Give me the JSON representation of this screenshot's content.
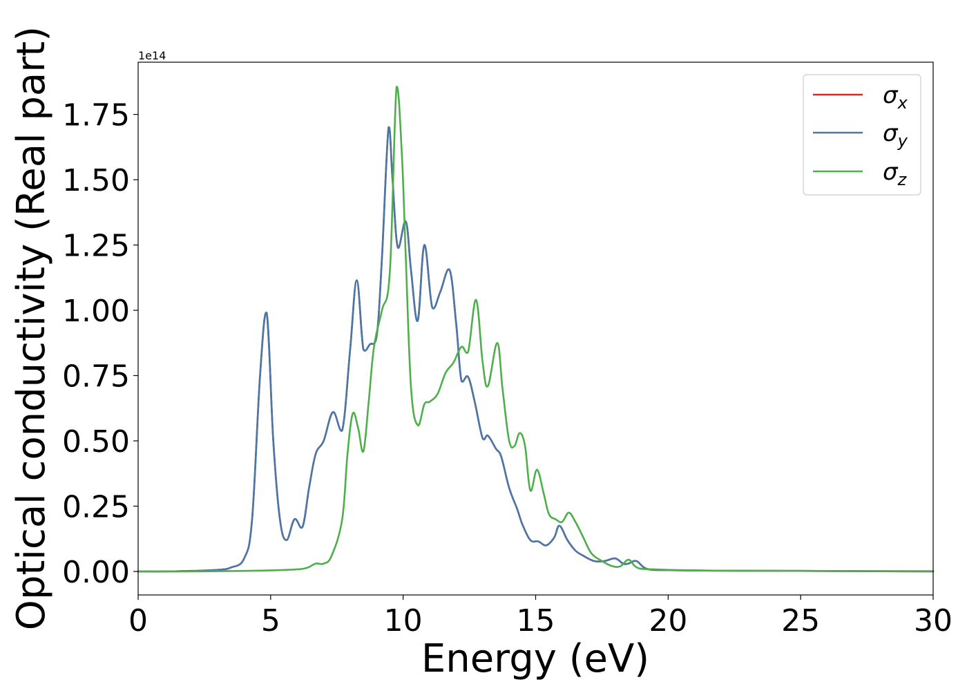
{
  "colors": {
    "sigma_x": "#d62728",
    "sigma_y": "#4878a8",
    "sigma_z": "#4daf4a"
  },
  "chart_data": {
    "type": "line",
    "title": "",
    "xlabel": "Energy (eV)",
    "ylabel": "Optical conductivity (Real part)",
    "y_offset_label": "1e14",
    "xlim": [
      0,
      30
    ],
    "ylim": [
      -0.09,
      1.95
    ],
    "x_ticks": [
      0,
      5,
      10,
      15,
      20,
      25,
      30
    ],
    "x_tick_labels": [
      "0",
      "5",
      "10",
      "15",
      "20",
      "25",
      "30"
    ],
    "y_ticks": [
      0.0,
      0.25,
      0.5,
      0.75,
      1.0,
      1.25,
      1.5,
      1.75
    ],
    "y_tick_labels": [
      "0.00",
      "0.25",
      "0.50",
      "0.75",
      "1.00",
      "1.25",
      "1.50",
      "1.75"
    ],
    "grid": false,
    "legend": {
      "position": "top-right",
      "entries": [
        "σx",
        "σy",
        "σz"
      ]
    },
    "series": [
      {
        "name": "σx",
        "legend_base": "σ",
        "legend_sub": "x",
        "color": "#d62728",
        "x": [
          0,
          1,
          2,
          3,
          3.5,
          4,
          4.3,
          4.6,
          4.85,
          5.1,
          5.35,
          5.6,
          5.9,
          6.2,
          6.45,
          6.7,
          7.0,
          7.35,
          7.7,
          8.0,
          8.25,
          8.5,
          8.75,
          9.0,
          9.2,
          9.45,
          9.6,
          9.8,
          10.1,
          10.3,
          10.55,
          10.8,
          11.1,
          11.4,
          11.75,
          12.0,
          12.2,
          12.45,
          12.7,
          13.0,
          13.2,
          13.5,
          13.7,
          14.0,
          14.3,
          14.5,
          14.8,
          15.1,
          15.4,
          15.7,
          15.9,
          16.2,
          16.5,
          16.8,
          17.2,
          17.6,
          18.0,
          18.3,
          18.5,
          18.8,
          19.2,
          20,
          22,
          25,
          30
        ],
        "y": [
          0.0,
          0.0,
          0.002,
          0.006,
          0.015,
          0.05,
          0.2,
          0.75,
          0.99,
          0.5,
          0.2,
          0.12,
          0.2,
          0.17,
          0.32,
          0.45,
          0.5,
          0.61,
          0.54,
          0.85,
          1.115,
          0.85,
          0.87,
          0.9,
          1.2,
          1.7,
          1.5,
          1.24,
          1.34,
          1.15,
          0.96,
          1.25,
          1.01,
          1.07,
          1.155,
          0.95,
          0.73,
          0.745,
          0.65,
          0.51,
          0.52,
          0.47,
          0.44,
          0.32,
          0.24,
          0.18,
          0.12,
          0.115,
          0.1,
          0.13,
          0.175,
          0.12,
          0.08,
          0.06,
          0.04,
          0.04,
          0.05,
          0.03,
          0.03,
          0.04,
          0.01,
          0.005,
          0.003,
          0.002,
          0.0
        ]
      },
      {
        "name": "σy",
        "legend_base": "σ",
        "legend_sub": "y",
        "color": "#4878a8",
        "x": [
          0,
          1,
          2,
          3,
          3.5,
          4,
          4.3,
          4.6,
          4.85,
          5.1,
          5.35,
          5.6,
          5.9,
          6.2,
          6.45,
          6.7,
          7.0,
          7.35,
          7.7,
          8.0,
          8.25,
          8.5,
          8.75,
          9.0,
          9.2,
          9.45,
          9.6,
          9.8,
          10.1,
          10.3,
          10.55,
          10.8,
          11.1,
          11.4,
          11.75,
          12.0,
          12.2,
          12.45,
          12.7,
          13.0,
          13.2,
          13.5,
          13.7,
          14.0,
          14.3,
          14.5,
          14.8,
          15.1,
          15.4,
          15.7,
          15.9,
          16.2,
          16.5,
          16.8,
          17.2,
          17.6,
          18.0,
          18.3,
          18.5,
          18.8,
          19.2,
          20,
          22,
          25,
          30
        ],
        "y": [
          0.0,
          0.0,
          0.002,
          0.006,
          0.015,
          0.05,
          0.2,
          0.75,
          0.99,
          0.5,
          0.2,
          0.12,
          0.2,
          0.17,
          0.32,
          0.45,
          0.5,
          0.61,
          0.54,
          0.85,
          1.115,
          0.85,
          0.87,
          0.9,
          1.2,
          1.7,
          1.5,
          1.24,
          1.34,
          1.15,
          0.96,
          1.25,
          1.01,
          1.07,
          1.155,
          0.95,
          0.73,
          0.745,
          0.65,
          0.51,
          0.52,
          0.47,
          0.44,
          0.32,
          0.24,
          0.18,
          0.12,
          0.115,
          0.1,
          0.13,
          0.175,
          0.12,
          0.08,
          0.06,
          0.04,
          0.04,
          0.05,
          0.03,
          0.03,
          0.04,
          0.01,
          0.005,
          0.003,
          0.002,
          0.0
        ]
      },
      {
        "name": "σz",
        "legend_base": "σ",
        "legend_sub": "z",
        "color": "#4daf4a",
        "x": [
          0,
          2,
          4,
          5,
          6,
          6.4,
          6.7,
          7.0,
          7.3,
          7.7,
          7.9,
          8.1,
          8.3,
          8.5,
          8.7,
          8.9,
          9.2,
          9.5,
          9.75,
          9.95,
          10.1,
          10.3,
          10.55,
          10.8,
          11.0,
          11.3,
          11.6,
          11.9,
          12.2,
          12.45,
          12.75,
          13.0,
          13.2,
          13.55,
          13.75,
          14.0,
          14.2,
          14.4,
          14.6,
          14.8,
          15.05,
          15.3,
          15.5,
          15.75,
          16.0,
          16.25,
          16.5,
          16.8,
          17.1,
          17.5,
          17.9,
          18.2,
          18.5,
          18.75,
          19.0,
          19.5,
          20,
          21,
          22,
          25,
          30
        ],
        "y": [
          0.0,
          0.0,
          0.002,
          0.004,
          0.008,
          0.015,
          0.03,
          0.03,
          0.06,
          0.2,
          0.45,
          0.605,
          0.55,
          0.46,
          0.65,
          0.86,
          1.0,
          1.15,
          1.855,
          1.6,
          1.2,
          0.7,
          0.56,
          0.64,
          0.65,
          0.68,
          0.76,
          0.8,
          0.86,
          0.84,
          1.04,
          0.8,
          0.71,
          0.875,
          0.7,
          0.5,
          0.48,
          0.53,
          0.48,
          0.31,
          0.39,
          0.3,
          0.22,
          0.2,
          0.19,
          0.225,
          0.19,
          0.13,
          0.07,
          0.04,
          0.02,
          0.02,
          0.045,
          0.02,
          0.01,
          0.008,
          0.006,
          0.004,
          0.003,
          0.002,
          0.001
        ]
      }
    ]
  }
}
